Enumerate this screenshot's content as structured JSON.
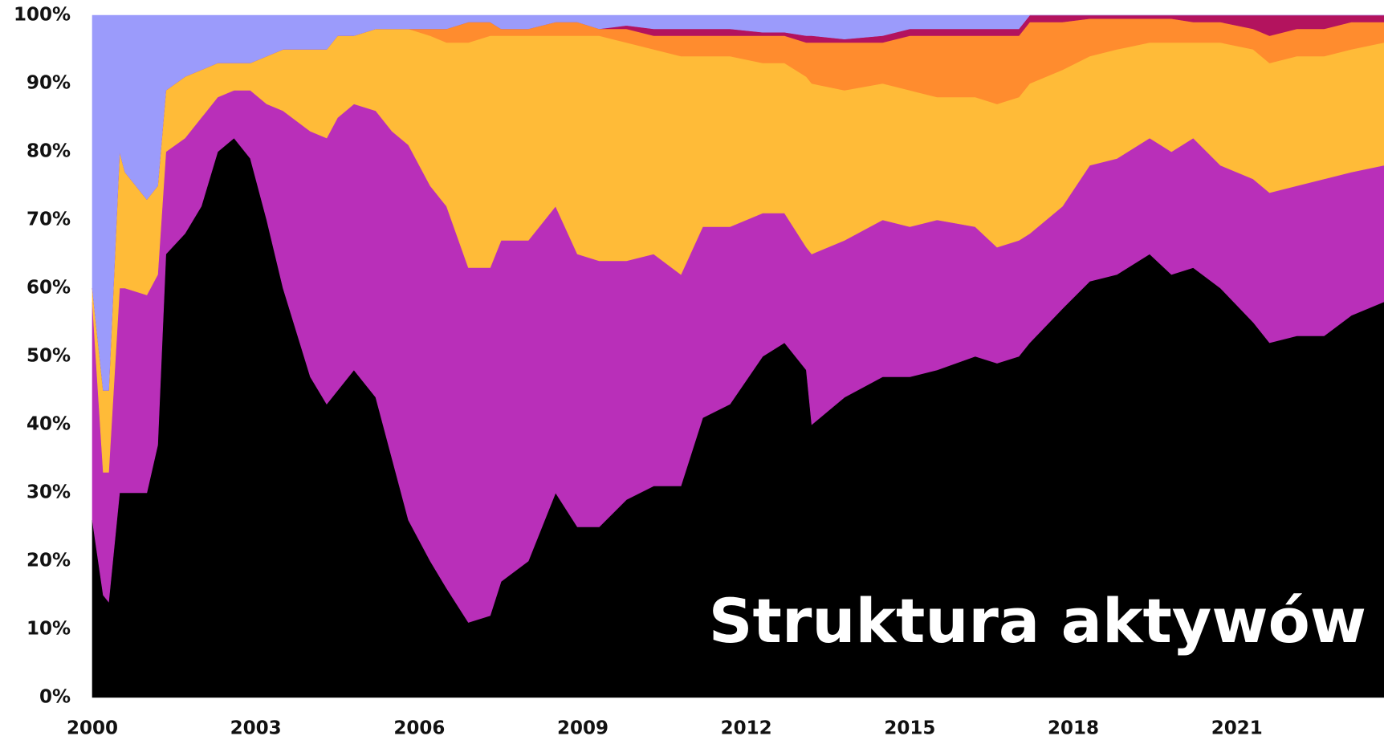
{
  "chart_data": {
    "type": "stacked_area",
    "annotation": "Struktura aktywów",
    "x": [
      2000.0,
      2000.2,
      2000.3,
      2000.5,
      2000.6,
      2001.0,
      2001.2,
      2001.35,
      2001.7,
      2002.0,
      2002.3,
      2002.6,
      2002.9,
      2003.2,
      2003.5,
      2004.0,
      2004.3,
      2004.5,
      2004.8,
      2005.2,
      2005.5,
      2005.8,
      2006.2,
      2006.5,
      2006.9,
      2007.3,
      2007.5,
      2008.0,
      2008.5,
      2008.9,
      2009.3,
      2009.8,
      2010.3,
      2010.8,
      2011.2,
      2011.7,
      2012.3,
      2012.7,
      2013.1,
      2013.2,
      2013.8,
      2014.5,
      2015.0,
      2015.5,
      2016.2,
      2016.6,
      2017.0,
      2017.2,
      2017.8,
      2018.3,
      2018.8,
      2019.4,
      2019.8,
      2020.2,
      2020.7,
      2021.3,
      2021.6,
      2022.1,
      2022.6,
      2023.1,
      2023.7
    ],
    "series": [
      {
        "color": "#000000",
        "values": [
          26,
          15,
          14,
          30,
          30,
          30,
          37,
          65,
          68,
          72,
          80,
          82,
          79,
          70,
          60,
          47,
          43,
          45,
          48,
          44,
          35,
          26,
          20,
          16,
          11,
          12,
          17,
          20,
          30,
          25,
          25,
          29,
          31,
          31,
          41,
          43,
          50,
          52,
          48,
          40,
          44,
          47,
          47,
          48,
          50,
          49,
          50,
          52,
          57,
          61,
          62,
          65,
          62,
          63,
          60,
          55,
          52,
          53,
          53,
          56,
          58
        ]
      },
      {
        "color": "#b92fb9",
        "values": [
          32,
          18,
          19,
          30,
          30,
          29,
          25,
          15,
          14,
          13,
          8,
          7,
          10,
          17,
          26,
          36,
          39,
          40,
          39,
          42,
          48,
          55,
          55,
          56,
          52,
          51,
          50,
          47,
          42,
          40,
          39,
          35,
          34,
          31,
          28,
          26,
          21,
          19,
          18,
          25,
          23,
          23,
          22,
          22,
          19,
          17,
          17,
          16,
          15,
          17,
          17,
          17,
          18,
          19,
          18,
          21,
          22,
          22,
          23,
          21,
          20
        ]
      },
      {
        "color": "#ffbb38",
        "values": [
          2,
          12,
          12,
          20,
          17,
          14,
          13,
          9,
          9,
          7,
          5,
          4,
          4,
          7,
          9,
          12,
          13,
          12,
          10,
          12,
          15,
          17,
          22,
          24,
          33,
          34,
          30,
          30,
          25,
          32,
          33,
          32,
          30,
          32,
          25,
          25,
          22,
          22,
          25,
          25,
          22,
          20,
          20,
          18,
          19,
          21,
          21,
          22,
          20,
          16,
          16,
          14,
          16,
          14,
          18,
          19,
          19,
          19,
          18,
          18,
          18
        ]
      },
      {
        "color": "#ff8c2e",
        "values": [
          0,
          0,
          0,
          0,
          0,
          0,
          0,
          0,
          0,
          0,
          0,
          0,
          0,
          0,
          0,
          0,
          0,
          0,
          0,
          0,
          0,
          0,
          1,
          2,
          3,
          2,
          1,
          1,
          2,
          2,
          1,
          2,
          2,
          3,
          3,
          3,
          4,
          4,
          5,
          6,
          7,
          6,
          8,
          9,
          9,
          10,
          9,
          9,
          7,
          5.5,
          4.5,
          3.5,
          3.5,
          3,
          3,
          3,
          4,
          4,
          4,
          4,
          3
        ]
      },
      {
        "color": "#b3135e",
        "values": [
          0,
          0,
          0,
          0,
          0,
          0,
          0,
          0,
          0,
          0,
          0,
          0,
          0,
          0,
          0,
          0,
          0,
          0,
          0,
          0,
          0,
          0,
          0,
          0,
          0,
          0,
          0,
          0,
          0,
          0,
          0,
          0.5,
          1,
          1,
          1,
          1,
          0.5,
          0.5,
          1,
          1,
          0.5,
          1,
          1,
          1,
          1,
          1,
          1,
          1,
          1,
          0.5,
          0.5,
          0.5,
          0.5,
          1,
          1,
          2,
          3,
          2,
          2,
          1,
          1
        ]
      },
      {
        "color": "#9b9bfb",
        "values": [
          40,
          55,
          55,
          20,
          23,
          27,
          25,
          11,
          9,
          8,
          7,
          7,
          7,
          6,
          5,
          5,
          5,
          3,
          3,
          2,
          2,
          2,
          2,
          2,
          1,
          1,
          2,
          2,
          1,
          1,
          2,
          1.5,
          2,
          2,
          2,
          2,
          2.5,
          2.5,
          3,
          3,
          3.5,
          3,
          2,
          2,
          2,
          2,
          2,
          0,
          0,
          0,
          0,
          0,
          0,
          0,
          0,
          0,
          0,
          0,
          0,
          0,
          0
        ]
      }
    ],
    "xlim": [
      2000,
      2023.7
    ],
    "xticks": [
      2000,
      2003,
      2006,
      2009,
      2012,
      2015,
      2018,
      2021
    ],
    "ylim": [
      0,
      100
    ],
    "yticks": [
      {
        "value": 0,
        "label": "0%"
      },
      {
        "value": 10,
        "label": "10%"
      },
      {
        "value": 20,
        "label": "20%"
      },
      {
        "value": 30,
        "label": "30%"
      },
      {
        "value": 40,
        "label": "40%"
      },
      {
        "value": 50,
        "label": "50%"
      },
      {
        "value": 60,
        "label": "60%"
      },
      {
        "value": 70,
        "label": "70%"
      },
      {
        "value": 80,
        "label": "80%"
      },
      {
        "value": 90,
        "label": "90%"
      },
      {
        "value": 100,
        "label": "100%"
      }
    ]
  }
}
